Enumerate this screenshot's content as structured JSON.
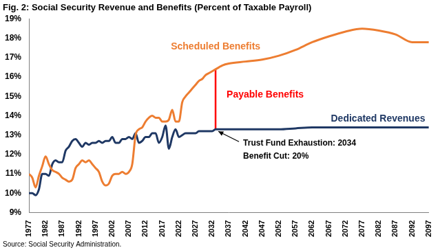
{
  "chart_data": {
    "type": "line",
    "title": "Fig. 2: Social Security Revenue and Benefits (Percent of Taxable Payroll)",
    "source": "Source: Social Security Administration.",
    "x": [
      1977,
      1978,
      1979,
      1980,
      1981,
      1982,
      1983,
      1984,
      1985,
      1986,
      1987,
      1988,
      1989,
      1990,
      1991,
      1992,
      1993,
      1994,
      1995,
      1996,
      1997,
      1998,
      1999,
      2000,
      2001,
      2002,
      2003,
      2004,
      2005,
      2006,
      2007,
      2008,
      2009,
      2010,
      2011,
      2012,
      2013,
      2014,
      2015,
      2016,
      2017,
      2018,
      2019,
      2020,
      2021,
      2022,
      2023,
      2024,
      2025,
      2026,
      2027,
      2028,
      2029,
      2030,
      2031,
      2032,
      2033,
      2034,
      2035,
      2037,
      2042,
      2047,
      2052,
      2057,
      2062,
      2067,
      2072,
      2077,
      2082,
      2087,
      2092,
      2097
    ],
    "series": [
      {
        "name": "Scheduled Benefits",
        "color": "#ed7d31",
        "values": [
          11.0,
          10.8,
          10.3,
          10.9,
          11.4,
          11.9,
          11.5,
          11.2,
          11.1,
          11.0,
          10.8,
          10.7,
          10.6,
          10.7,
          11.3,
          11.5,
          11.7,
          11.6,
          11.7,
          11.5,
          11.3,
          11.1,
          10.6,
          10.4,
          10.5,
          10.9,
          11.0,
          11.0,
          11.1,
          11.0,
          11.1,
          11.5,
          13.0,
          13.3,
          13.4,
          13.7,
          13.9,
          14.0,
          13.9,
          13.9,
          13.7,
          13.7,
          13.8,
          14.3,
          13.7,
          13.7,
          14.7,
          15.0,
          15.2,
          15.4,
          15.6,
          15.8,
          15.9,
          16.1,
          16.2,
          16.3,
          16.4,
          16.5,
          16.6,
          16.7,
          16.8,
          16.9,
          17.1,
          17.4,
          17.8,
          18.1,
          18.35,
          18.5,
          18.4,
          18.2,
          17.8,
          17.8
        ]
      },
      {
        "name": "Dedicated Revenues",
        "color": "#1f3864",
        "values": [
          10.0,
          10.0,
          9.9,
          10.2,
          11.0,
          11.0,
          10.9,
          11.5,
          11.7,
          11.6,
          11.6,
          12.2,
          12.4,
          12.7,
          12.8,
          12.6,
          12.4,
          12.6,
          12.5,
          12.6,
          12.6,
          12.7,
          12.6,
          12.7,
          12.7,
          12.9,
          12.6,
          12.6,
          12.8,
          12.8,
          12.9,
          12.8,
          13.1,
          12.6,
          12.7,
          12.9,
          12.9,
          13.1,
          13.1,
          12.6,
          12.9,
          13.5,
          12.3,
          12.9,
          13.3,
          12.9,
          13.0,
          13.1,
          13.1,
          13.1,
          13.1,
          13.2,
          13.2,
          13.2,
          13.2,
          13.2,
          13.3,
          13.3,
          13.3,
          13.3,
          13.3,
          13.3,
          13.3,
          13.35,
          13.4,
          13.4,
          13.4,
          13.4,
          13.4,
          13.4,
          13.4,
          13.4
        ]
      }
    ],
    "gap_marker": {
      "name": "Payable Benefits",
      "color": "#ff0000",
      "x": 2033,
      "from": 13.3,
      "to": 16.4
    },
    "annotations": [
      "Trust Fund Exhaustion: 2034",
      "Benefit Cut: 20%"
    ],
    "xlim": [
      1977,
      2097
    ],
    "xticks": [
      1977,
      1982,
      1987,
      1992,
      1997,
      2002,
      2007,
      2012,
      2017,
      2022,
      2027,
      2032,
      2037,
      2042,
      2047,
      2052,
      2057,
      2062,
      2067,
      2072,
      2077,
      2082,
      2087,
      2092,
      2097
    ],
    "ylim": [
      9,
      19
    ],
    "yticks": [
      {
        "value": 9,
        "label": "9%"
      },
      {
        "value": 10,
        "label": "10%"
      },
      {
        "value": 11,
        "label": "11%"
      },
      {
        "value": 12,
        "label": "12%"
      },
      {
        "value": 13,
        "label": "13%"
      },
      {
        "value": 14,
        "label": "14%"
      },
      {
        "value": 15,
        "label": "15%"
      },
      {
        "value": 16,
        "label": "16%"
      },
      {
        "value": 17,
        "label": "17%"
      },
      {
        "value": 18,
        "label": "18%"
      },
      {
        "value": 19,
        "label": "19%"
      }
    ],
    "grid": false,
    "legend": false
  }
}
